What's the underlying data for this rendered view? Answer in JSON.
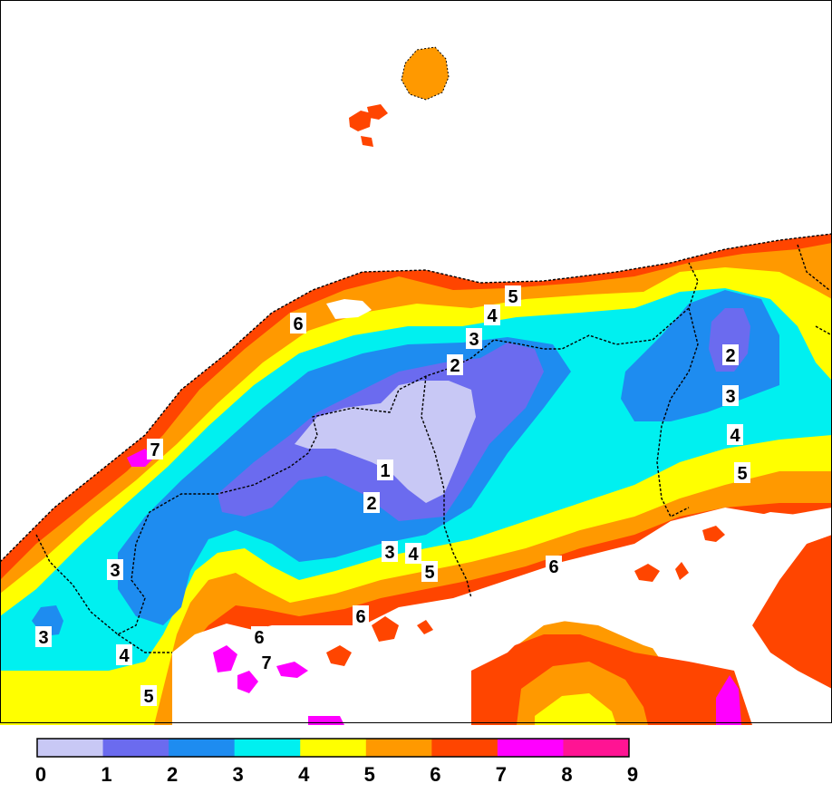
{
  "map": {
    "palette": {
      "sea_blank": "#ffffff",
      "band_0_1": "#c8c8f5",
      "band_1_2": "#6b6bef",
      "band_2_3": "#1e8cf0",
      "band_3_4": "#00f0f0",
      "band_4_5": "#ffff00",
      "band_5_6": "#ff9900",
      "band_6_7": "#ff4500",
      "band_7_8": "#ff00ff",
      "band_8_9": "#ff1493",
      "border": "#000000"
    },
    "contour_labels": [
      {
        "text": "6"
      },
      {
        "text": "5"
      },
      {
        "text": "4"
      },
      {
        "text": "3"
      },
      {
        "text": "2"
      },
      {
        "text": "2"
      },
      {
        "text": "3"
      },
      {
        "text": "4"
      },
      {
        "text": "5"
      },
      {
        "text": "7"
      },
      {
        "text": "1"
      },
      {
        "text": "2"
      },
      {
        "text": "3"
      },
      {
        "text": "4"
      },
      {
        "text": "5"
      },
      {
        "text": "6"
      },
      {
        "text": "3"
      },
      {
        "text": "3"
      },
      {
        "text": "4"
      },
      {
        "text": "5"
      },
      {
        "text": "6"
      },
      {
        "text": "7"
      },
      {
        "text": "6"
      }
    ]
  },
  "legend": {
    "ticks": [
      "0",
      "1",
      "2",
      "3",
      "4",
      "5",
      "6",
      "7",
      "8",
      "9"
    ]
  }
}
